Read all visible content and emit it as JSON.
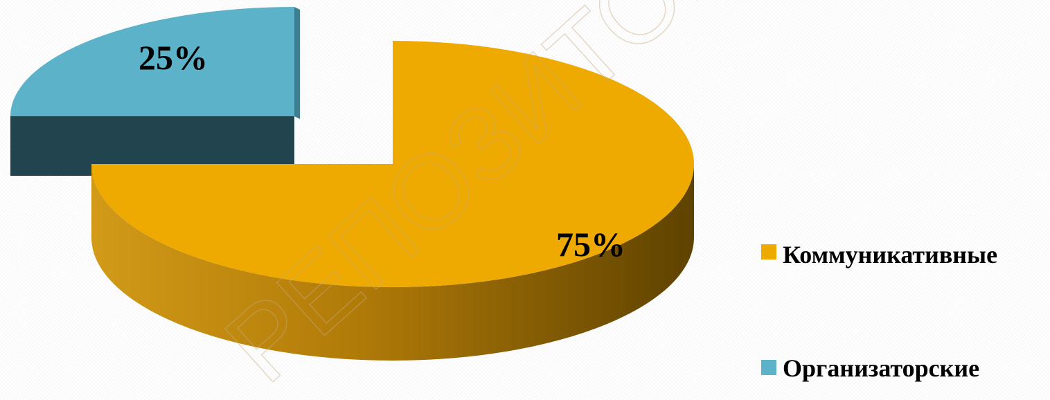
{
  "chart_data": {
    "type": "pie",
    "labels": [
      "Коммуникативные",
      "Организаторские"
    ],
    "values": [
      75,
      25
    ],
    "value_labels": [
      "75%",
      "25%"
    ],
    "colors": [
      "#EEAA00",
      "#5BB2C9"
    ],
    "side_colors": [
      "#A06E00",
      "#22444F"
    ],
    "title": "",
    "legend_position": "right",
    "three_d": true,
    "exploded": "Организаторские"
  },
  "watermark": "РЕПОЗИТОРИЙ БГ"
}
